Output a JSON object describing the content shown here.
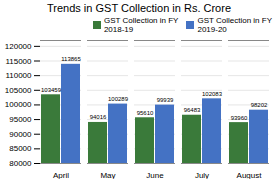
{
  "chart_data": {
    "type": "bar",
    "title": "Trends in GST Collection in Rs. Crore",
    "categories": [
      "April",
      "May",
      "June",
      "July",
      "August"
    ],
    "series": [
      {
        "name": "GST Collection in FY\n2018-19",
        "color": "#3a7a3a",
        "values": [
          103459,
          94016,
          95610,
          96483,
          93960
        ]
      },
      {
        "name": "GST Collection in FY\n2019-20",
        "color": "#4472c4",
        "values": [
          113865,
          100289,
          99939,
          102083,
          98202
        ]
      }
    ],
    "ylim": [
      80000,
      122000
    ],
    "yticks": [
      80000,
      85000,
      90000,
      95000,
      100000,
      105000,
      110000,
      115000,
      120000
    ],
    "grid": true,
    "legend": "upper right",
    "data_labels": true
  }
}
